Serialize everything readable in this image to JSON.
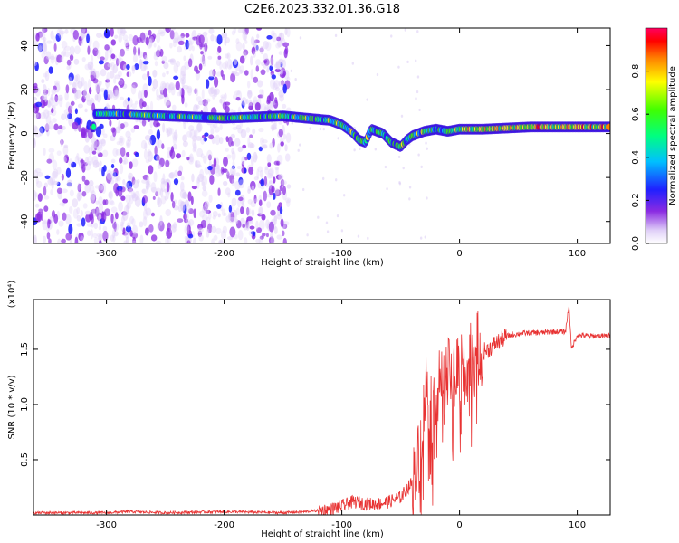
{
  "title": "C2E6.2023.332.01.36.G18",
  "chart_data": [
    {
      "type": "heatmap",
      "xlabel": "Height of straight line (km)",
      "ylabel": "Frequency (Hz)",
      "xlim": [
        -362,
        128
      ],
      "ylim": [
        -50,
        48
      ],
      "xticks": [
        "-300",
        "-200",
        "-100",
        "0",
        "100"
      ],
      "yticks": [
        "-40",
        "-20",
        "0",
        "20",
        "40"
      ],
      "colorbar": {
        "label": "Normalized spectral amplitude",
        "range": [
          0,
          1
        ],
        "ticks": [
          "0.0",
          "0.2",
          "0.4",
          "0.6",
          "0.8"
        ]
      },
      "ridge": {
        "x": [
          -310,
          -290,
          -250,
          -200,
          -150,
          -130,
          -110,
          -100,
          -92,
          -85,
          -80,
          -75,
          -65,
          -58,
          -50,
          -45,
          -40,
          -30,
          -20,
          -10,
          0,
          20,
          60,
          90,
          128
        ],
        "y": [
          9,
          9,
          8,
          7,
          8,
          7,
          6,
          4,
          1,
          -3,
          -4,
          2,
          0,
          -4,
          -6,
          -3,
          -1,
          1,
          2,
          1,
          2,
          2,
          3,
          3,
          3
        ]
      },
      "grid": false
    },
    {
      "type": "line",
      "xlabel": "Height of straight line (km)",
      "ylabel": "SNR (10 * v/v)",
      "y_multiplier": "(x10⁴)",
      "xlim": [
        -362,
        128
      ],
      "ylim": [
        0.0,
        1.95
      ],
      "xticks": [
        "-300",
        "-200",
        "-100",
        "0",
        "100"
      ],
      "yticks": [
        "0.5",
        "1.0",
        "1.5"
      ],
      "line_color": "#e83232",
      "series": [
        {
          "x": [
            -362,
            -300,
            -280,
            -250,
            -200,
            -150,
            -130,
            -110,
            -100,
            -90,
            -80,
            -70,
            -60,
            -50,
            -40,
            -35,
            -32,
            -28,
            -25,
            -22,
            -20,
            -15,
            -10,
            -5,
            0,
            5,
            10,
            15,
            20,
            25,
            30,
            35,
            40,
            50,
            60,
            70,
            80,
            90,
            93,
            95,
            100,
            110,
            120,
            128
          ],
          "y": [
            0.02,
            0.02,
            0.03,
            0.02,
            0.03,
            0.02,
            0.03,
            0.05,
            0.08,
            0.12,
            0.1,
            0.1,
            0.12,
            0.16,
            0.3,
            0.5,
            0.85,
            1.2,
            1.05,
            0.95,
            1.15,
            1.2,
            1.25,
            1.3,
            1.35,
            1.4,
            1.45,
            1.5,
            1.48,
            1.5,
            1.55,
            1.58,
            1.62,
            1.64,
            1.65,
            1.65,
            1.66,
            1.66,
            1.9,
            1.5,
            1.63,
            1.62,
            1.62,
            1.62
          ]
        }
      ]
    }
  ]
}
